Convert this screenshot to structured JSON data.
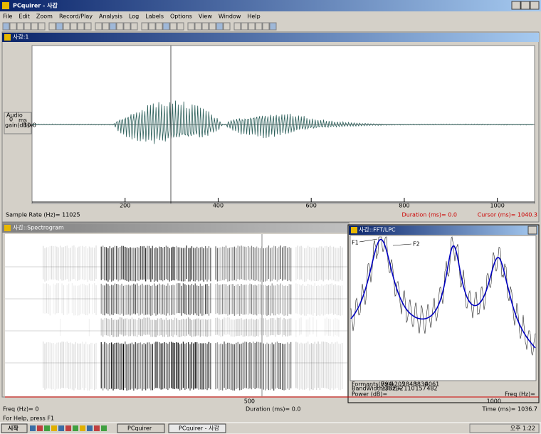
{
  "app": {
    "title": "PCquirer - 사감",
    "menu": [
      "File",
      "Edit",
      "Zoom",
      "Record/Play",
      "Analysis",
      "Log",
      "Labels",
      "Options",
      "View",
      "Window",
      "Help"
    ]
  },
  "waveform": {
    "title": "사감:1",
    "side": {
      "label": "Audio",
      "value": "0",
      "unit": "ms",
      "gain": "gain(dB)=",
      "gain_value": "10.0"
    },
    "ticks": [
      200,
      400,
      600,
      800,
      1000
    ],
    "sample_rate": "Sample Rate (Hz)= 11025",
    "duration": "Duration (ms)= 0.0",
    "cursor": "Cursor (ms)= 1040.3"
  },
  "spectrogram": {
    "title": "사감::Spectrogram",
    "ticks": [
      500,
      1000
    ],
    "freq": "Freq (Hz)= 0",
    "duration": "Duration (ms)= 0.0",
    "time": "Time (ms)= 1036.7"
  },
  "fft": {
    "title": "사감::FFT/LPC",
    "f1": "F1",
    "f2": "F2",
    "formants_label": "Formants(Hz)=",
    "formants": [
      794,
      1205,
      2848,
      3830,
      4061
    ],
    "bandwidths_label": "BandWidths(Hz)=",
    "bandwidths": [
      236,
      232,
      110,
      157,
      482
    ],
    "power": "Power (dB)=",
    "freq": "Freq (Hz)="
  },
  "status": "For Help, press F1",
  "taskbar": {
    "start": "시작",
    "items": [
      "PCquirer",
      "PCquirer - 사감"
    ],
    "clock": "오후 1:22"
  }
}
